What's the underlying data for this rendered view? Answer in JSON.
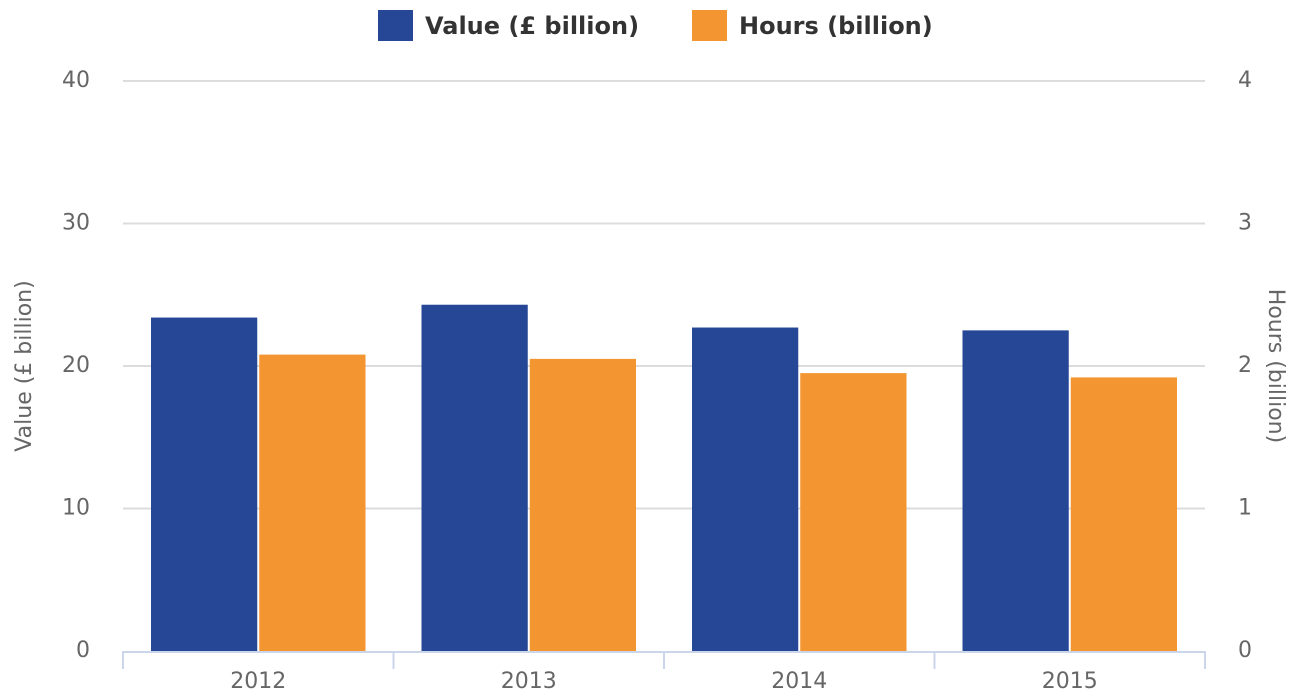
{
  "chart_data": {
    "type": "bar",
    "categories": [
      "2012",
      "2013",
      "2014",
      "2015"
    ],
    "series": [
      {
        "name": "Value (£ billion)",
        "color": "#264796",
        "values": [
          23.4,
          24.3,
          22.7,
          22.5
        ]
      },
      {
        "name": "Hours (billion)",
        "color": "#f39530",
        "values": [
          2.08,
          2.05,
          1.95,
          1.92
        ],
        "axis": "y2"
      }
    ],
    "y_label": "Value (£ billion)",
    "y2_label": "Hours (billion)",
    "ylim": [
      0,
      40
    ],
    "yticks": [
      0,
      10,
      20,
      30,
      40
    ],
    "y2lim": [
      0,
      4
    ],
    "y2ticks": [
      0,
      1,
      2,
      3,
      4
    ],
    "grid": true
  }
}
